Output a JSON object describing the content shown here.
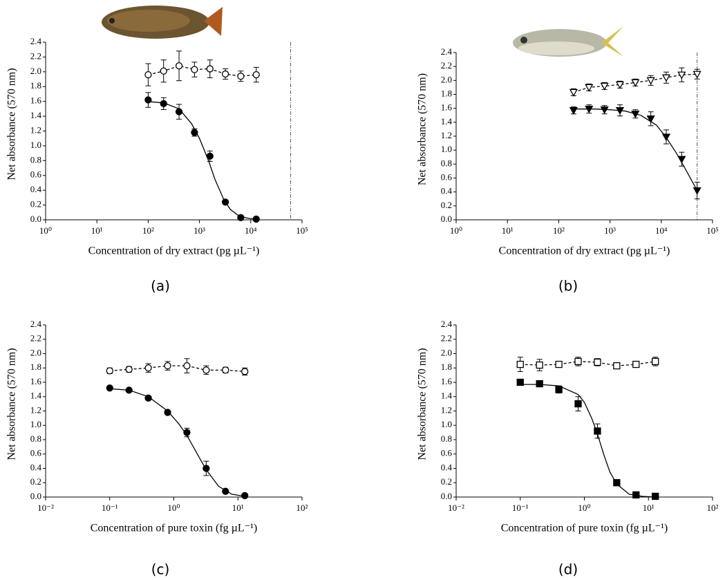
{
  "chart_data": [
    {
      "type": "scatter",
      "panel_label": "(a)",
      "x_label": "Concentration of dry extract (pg µL⁻¹)",
      "y_label": "Net absorbance (570 nm)",
      "xscale": "log",
      "xlim": [
        1,
        100000
      ],
      "xticks": [
        {
          "value": 1,
          "label": "10⁰"
        },
        {
          "value": 10,
          "label": "10¹"
        },
        {
          "value": 100,
          "label": "10²"
        },
        {
          "value": 1000,
          "label": "10³"
        },
        {
          "value": 10000,
          "label": "10⁴"
        },
        {
          "value": 100000,
          "label": "10⁵"
        }
      ],
      "ylim": [
        0,
        2.4
      ],
      "yticks": [
        {
          "value": 0,
          "label": "0.0"
        },
        0.2,
        0.4,
        0.6,
        0.8,
        {
          "value": 1,
          "label": "1.0"
        },
        1.2,
        1.4,
        1.6,
        1.8,
        {
          "value": 2,
          "label": "2.0"
        },
        2.2,
        2.4
      ],
      "vline": 60000,
      "series": [
        {
          "marker": "circle",
          "filled": false,
          "line": "dashed",
          "color": "#000000",
          "x": [
            100,
            200,
            400,
            800,
            1600,
            3200,
            6400,
            12800
          ],
          "values": [
            1.96,
            2.01,
            2.08,
            2.03,
            2.04,
            1.97,
            1.94,
            1.96
          ],
          "errors": [
            0.15,
            0.15,
            0.2,
            0.1,
            0.12,
            0.07,
            0.07,
            0.1
          ]
        },
        {
          "marker": "circle",
          "filled": true,
          "line": "none",
          "color": "#000000",
          "x": [
            100,
            200,
            400,
            800,
            1600,
            3200,
            6400,
            12800
          ],
          "values": [
            1.62,
            1.57,
            1.46,
            1.18,
            0.86,
            0.24,
            0.03,
            0.01
          ],
          "errors": [
            0.1,
            0.08,
            0.1,
            0.05,
            0.07,
            0.02,
            0.02,
            0.02
          ]
        }
      ],
      "fit": {
        "color": "#000000",
        "x": [
          90,
          200,
          400,
          700,
          1000,
          1500,
          2000,
          3000,
          4000,
          6000,
          9000,
          12800
        ],
        "values": [
          1.6,
          1.58,
          1.5,
          1.3,
          1.1,
          0.8,
          0.55,
          0.27,
          0.14,
          0.05,
          0.02,
          0.01
        ]
      }
    },
    {
      "type": "scatter",
      "panel_label": "(b)",
      "x_label": "Concentration of dry extract (pg µL⁻¹)",
      "y_label": "Net absorbance (570 nm)",
      "xscale": "log",
      "xlim": [
        1,
        100000
      ],
      "xticks": [
        {
          "value": 1,
          "label": "10⁰"
        },
        {
          "value": 10,
          "label": "10¹"
        },
        {
          "value": 100,
          "label": "10²"
        },
        {
          "value": 1000,
          "label": "10³"
        },
        {
          "value": 10000,
          "label": "10⁴"
        },
        {
          "value": 100000,
          "label": "10⁵"
        }
      ],
      "ylim": [
        0,
        2.4
      ],
      "yticks": [
        {
          "value": 0,
          "label": "0.0"
        },
        0.2,
        0.4,
        0.6,
        0.8,
        {
          "value": 1,
          "label": "1.0"
        },
        1.2,
        1.4,
        1.6,
        1.8,
        {
          "value": 2,
          "label": "2.0"
        },
        2.2,
        2.4
      ],
      "vline": 50000,
      "series": [
        {
          "marker": "triangle-down",
          "filled": false,
          "line": "dashed",
          "color": "#000000",
          "x": [
            195,
            390,
            781,
            1563,
            3125,
            6250,
            12500,
            25000,
            50000
          ],
          "values": [
            1.83,
            1.9,
            1.92,
            1.94,
            1.97,
            2.0,
            2.04,
            2.08,
            2.09
          ],
          "errors": [
            0.05,
            0.05,
            0.05,
            0.05,
            0.05,
            0.07,
            0.08,
            0.1,
            0.07
          ]
        },
        {
          "marker": "triangle-down",
          "filled": true,
          "line": "none",
          "color": "#000000",
          "x": [
            195,
            390,
            781,
            1563,
            3125,
            6250,
            12500,
            25000,
            50000
          ],
          "values": [
            1.57,
            1.59,
            1.58,
            1.57,
            1.52,
            1.45,
            1.19,
            0.87,
            0.42
          ],
          "errors": [
            0.05,
            0.06,
            0.06,
            0.08,
            0.06,
            0.1,
            0.1,
            0.1,
            0.12
          ]
        }
      ],
      "fit": {
        "color": "#000000",
        "x": [
          195,
          500,
          1000,
          2000,
          4000,
          8000,
          12000,
          20000,
          30000,
          50000
        ],
        "values": [
          1.59,
          1.59,
          1.58,
          1.56,
          1.5,
          1.36,
          1.2,
          0.95,
          0.72,
          0.42
        ]
      }
    },
    {
      "type": "scatter",
      "panel_label": "(c)",
      "x_label": "Concentration of pure toxin (fg µL⁻¹)",
      "y_label": "Net absorbance (570 nm)",
      "xscale": "log",
      "xlim": [
        0.01,
        100
      ],
      "xticks": [
        {
          "value": 0.01,
          "label": "10⁻²"
        },
        {
          "value": 0.1,
          "label": "10⁻¹"
        },
        {
          "value": 1,
          "label": "10⁰"
        },
        {
          "value": 10,
          "label": "10¹"
        },
        {
          "value": 100,
          "label": "10²"
        }
      ],
      "ylim": [
        0,
        2.4
      ],
      "yticks": [
        {
          "value": 0,
          "label": "0.0"
        },
        0.2,
        0.4,
        0.6,
        0.8,
        {
          "value": 1,
          "label": "1.0"
        },
        1.2,
        1.4,
        1.6,
        1.8,
        {
          "value": 2,
          "label": "2.0"
        },
        2.2,
        2.4
      ],
      "series": [
        {
          "marker": "circle",
          "filled": false,
          "line": "dashed",
          "color": "#000000",
          "x": [
            0.1,
            0.2,
            0.4,
            0.8,
            1.6,
            3.2,
            6.4,
            12.8
          ],
          "values": [
            1.76,
            1.78,
            1.8,
            1.83,
            1.83,
            1.77,
            1.77,
            1.75
          ],
          "errors": [
            0.04,
            0.04,
            0.06,
            0.06,
            0.1,
            0.06,
            0.04,
            0.05
          ]
        },
        {
          "marker": "circle",
          "filled": true,
          "line": "none",
          "color": "#000000",
          "x": [
            0.1,
            0.2,
            0.4,
            0.8,
            1.6,
            3.2,
            6.4,
            12.8
          ],
          "values": [
            1.52,
            1.49,
            1.38,
            1.18,
            0.9,
            0.4,
            0.08,
            0.02
          ],
          "errors": [
            0.02,
            0.02,
            0.02,
            0.03,
            0.06,
            0.1,
            0.02,
            0.02
          ]
        }
      ],
      "fit": {
        "color": "#000000",
        "x": [
          0.1,
          0.2,
          0.4,
          0.8,
          1.2,
          1.6,
          2.5,
          3.2,
          5,
          8,
          12.8
        ],
        "values": [
          1.51,
          1.49,
          1.4,
          1.2,
          1.02,
          0.86,
          0.55,
          0.38,
          0.15,
          0.04,
          0.01
        ]
      }
    },
    {
      "type": "scatter",
      "panel_label": "(d)",
      "x_label": "Concentration of pure toxin (fg µL⁻¹)",
      "y_label": "Net absorbance (570 nm)",
      "xscale": "log",
      "xlim": [
        0.01,
        100
      ],
      "xticks": [
        {
          "value": 0.01,
          "label": "10⁻²"
        },
        {
          "value": 0.1,
          "label": "10⁻¹"
        },
        {
          "value": 1,
          "label": "10⁰"
        },
        {
          "value": 10,
          "label": "10¹"
        },
        {
          "value": 100,
          "label": "10²"
        }
      ],
      "ylim": [
        0,
        2.4
      ],
      "yticks": [
        {
          "value": 0,
          "label": "0.0"
        },
        0.2,
        0.4,
        0.6,
        0.8,
        {
          "value": 1,
          "label": "1.0"
        },
        1.2,
        1.4,
        1.6,
        1.8,
        {
          "value": 2,
          "label": "2.0"
        },
        2.2,
        2.4
      ],
      "series": [
        {
          "marker": "square",
          "filled": false,
          "line": "dashed",
          "color": "#000000",
          "x": [
            0.1,
            0.2,
            0.4,
            0.8,
            1.6,
            3.2,
            6.4,
            12.8
          ],
          "values": [
            1.85,
            1.84,
            1.85,
            1.89,
            1.88,
            1.83,
            1.85,
            1.89
          ],
          "errors": [
            0.1,
            0.08,
            0.03,
            0.06,
            0.05,
            0.03,
            0.02,
            0.06
          ]
        },
        {
          "marker": "square",
          "filled": true,
          "line": "none",
          "color": "#000000",
          "x": [
            0.1,
            0.2,
            0.4,
            0.8,
            1.6,
            3.2,
            6.4,
            12.8
          ],
          "values": [
            1.6,
            1.58,
            1.5,
            1.3,
            0.92,
            0.2,
            0.03,
            0.01
          ],
          "errors": [
            0.02,
            0.02,
            0.05,
            0.1,
            0.1,
            0.03,
            0.02,
            0.02
          ]
        }
      ],
      "fit": {
        "color": "#000000",
        "x": [
          0.1,
          0.2,
          0.4,
          0.8,
          1,
          1.3,
          1.6,
          2,
          2.5,
          3.2,
          5,
          8,
          12.8
        ],
        "values": [
          1.57,
          1.57,
          1.55,
          1.43,
          1.32,
          1.1,
          0.88,
          0.6,
          0.35,
          0.18,
          0.04,
          0.01,
          0
        ]
      }
    }
  ]
}
